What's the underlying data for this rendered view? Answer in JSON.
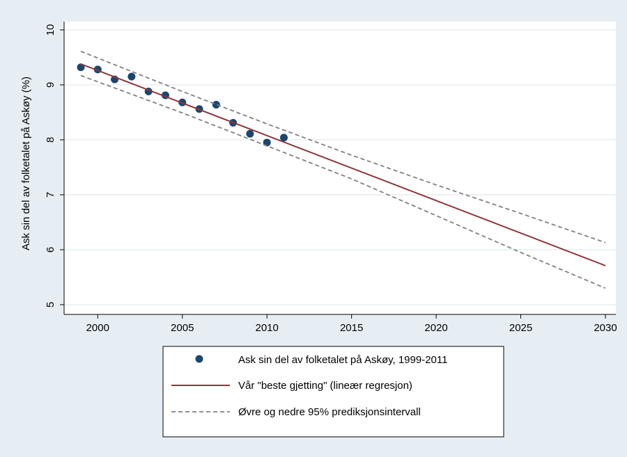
{
  "chart_data": {
    "type": "line",
    "title": "",
    "xlabel": "",
    "ylabel": "Ask sin del av folketalet på Askøy (%)",
    "xlim": [
      1999,
      2030
    ],
    "ylim": [
      5,
      10
    ],
    "xticks": [
      2000,
      2005,
      2010,
      2015,
      2020,
      2025,
      2030
    ],
    "yticks": [
      5,
      6,
      7,
      8,
      9,
      10
    ],
    "grid": true,
    "legend_position": "bottom",
    "colors": {
      "page_background": "#e7eef3",
      "plot_background": "#ffffff",
      "points": "#1a476f",
      "regression": "#90353b",
      "interval": "#808080",
      "grid": "#e7eef3"
    },
    "series": [
      {
        "name": "Ask sin del av folketalet på Askøy, 1999-2011",
        "kind": "scatter",
        "x": [
          1999,
          2000,
          2001,
          2002,
          2003,
          2004,
          2005,
          2006,
          2007,
          2008,
          2009,
          2010,
          2011
        ],
        "y": [
          9.32,
          9.28,
          9.1,
          9.15,
          8.88,
          8.81,
          8.68,
          8.56,
          8.64,
          8.31,
          8.11,
          7.95,
          8.04
        ]
      },
      {
        "name": "Vår \"beste gjetting\" (lineær regresjon)",
        "kind": "line",
        "style": "solid",
        "x": [
          1999,
          2030
        ],
        "y": [
          9.38,
          5.71
        ]
      },
      {
        "name": "Øvre og nedre 95% prediksjonsintervall",
        "kind": "line",
        "style": "dashed",
        "x": [
          1999,
          2005,
          2010,
          2015,
          2020,
          2025,
          2030
        ],
        "y": [
          9.61,
          8.88,
          8.29,
          7.72,
          7.18,
          6.66,
          6.13
        ]
      },
      {
        "name": "",
        "kind": "line",
        "style": "dashed",
        "x": [
          1999,
          2005,
          2010,
          2015,
          2020,
          2025,
          2030
        ],
        "y": [
          9.17,
          8.49,
          7.89,
          7.29,
          6.62,
          5.95,
          5.3
        ]
      }
    ],
    "legend": [
      {
        "label": "Ask sin del av folketalet på Askøy, 1999-2011",
        "symbol": "dot"
      },
      {
        "label": "Vår \"beste gjetting\" (lineær regresjon)",
        "symbol": "solid-line"
      },
      {
        "label": "Øvre og nedre 95% prediksjonsintervall",
        "symbol": "dashed-line"
      }
    ]
  }
}
